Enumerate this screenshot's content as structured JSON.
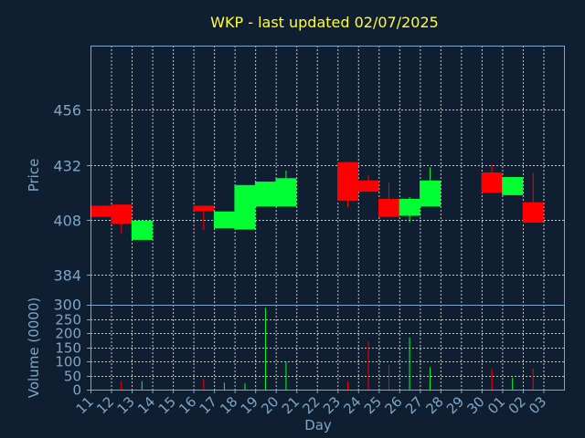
{
  "chart_data": {
    "type": "candlestick",
    "title": "WKP - last updated 02/07/2025",
    "price_panel": {
      "ylabel": "Price",
      "yticks": [
        384,
        408,
        432,
        456
      ],
      "ylim": [
        371,
        484
      ],
      "grid": true
    },
    "volume_panel": {
      "ylabel": "Volume (0000)",
      "yticks": [
        0,
        50,
        100,
        150,
        200,
        250,
        300
      ],
      "ylim": [
        0,
        300
      ],
      "grid": true
    },
    "xlabel": "Day",
    "x_labels": [
      "11",
      "12",
      "13",
      "14",
      "15",
      "16",
      "17",
      "18",
      "19",
      "20",
      "21",
      "22",
      "23",
      "24",
      "25",
      "26",
      "27",
      "28",
      "29",
      "30",
      "01",
      "02",
      "03"
    ],
    "colors": {
      "background": "#0f1e30",
      "up": "#00ff33",
      "down": "#ff0000",
      "grid": "#c8c8c8",
      "title": "#ffff33",
      "axis_text": "#7fa6c8"
    },
    "candles": [
      {
        "day": "11",
        "open": 414.0,
        "high": 414.0,
        "low": 409.5,
        "close": 409.5
      },
      {
        "day": "12",
        "open": 414.5,
        "high": 414.5,
        "low": 402.0,
        "close": 406.5
      },
      {
        "day": "13",
        "open": 399.5,
        "high": 407.5,
        "low": 399.5,
        "close": 407.5
      },
      {
        "day": "16",
        "open": 414.0,
        "high": 414.0,
        "low": 403.5,
        "close": 412.0
      },
      {
        "day": "17",
        "open": 404.5,
        "high": 411.5,
        "low": 404.5,
        "close": 411.5
      },
      {
        "day": "18",
        "open": 404.0,
        "high": 423.0,
        "low": 404.0,
        "close": 423.0
      },
      {
        "day": "19",
        "open": 414.0,
        "high": 424.5,
        "low": 414.0,
        "close": 424.5
      },
      {
        "day": "20",
        "open": 414.0,
        "high": 429.5,
        "low": 414.0,
        "close": 426.0
      },
      {
        "day": "23",
        "open": 433.0,
        "high": 433.0,
        "low": 413.5,
        "close": 416.5
      },
      {
        "day": "24",
        "open": 425.0,
        "high": 427.5,
        "low": 420.5,
        "close": 420.5
      },
      {
        "day": "25",
        "open": 417.0,
        "high": 424.5,
        "low": 409.5,
        "close": 409.5
      },
      {
        "day": "26",
        "open": 410.0,
        "high": 418.0,
        "low": 407.0,
        "close": 417.0
      },
      {
        "day": "27",
        "open": 414.0,
        "high": 431.0,
        "low": 414.0,
        "close": 425.0
      },
      {
        "day": "30",
        "open": 428.5,
        "high": 432.0,
        "low": 420.0,
        "close": 420.0
      },
      {
        "day": "01",
        "open": 419.0,
        "high": 426.5,
        "low": 419.0,
        "close": 426.5
      },
      {
        "day": "02",
        "open": 415.5,
        "high": 428.5,
        "low": 407.0,
        "close": 407.0
      }
    ],
    "volume": [
      {
        "day": "11",
        "value": 0,
        "dir": "down"
      },
      {
        "day": "12",
        "value": 30,
        "dir": "down"
      },
      {
        "day": "13",
        "value": 30,
        "dir": "up"
      },
      {
        "day": "16",
        "value": 38,
        "dir": "down"
      },
      {
        "day": "17",
        "value": 25,
        "dir": "up"
      },
      {
        "day": "18",
        "value": 22,
        "dir": "up"
      },
      {
        "day": "19",
        "value": 290,
        "dir": "up"
      },
      {
        "day": "20",
        "value": 98,
        "dir": "up"
      },
      {
        "day": "23",
        "value": 28,
        "dir": "down"
      },
      {
        "day": "24",
        "value": 170,
        "dir": "down"
      },
      {
        "day": "25",
        "value": 88,
        "dir": "down"
      },
      {
        "day": "26",
        "value": 185,
        "dir": "up"
      },
      {
        "day": "27",
        "value": 80,
        "dir": "up"
      },
      {
        "day": "30",
        "value": 72,
        "dir": "down"
      },
      {
        "day": "01",
        "value": 42,
        "dir": "up"
      },
      {
        "day": "02",
        "value": 75,
        "dir": "down"
      }
    ]
  }
}
